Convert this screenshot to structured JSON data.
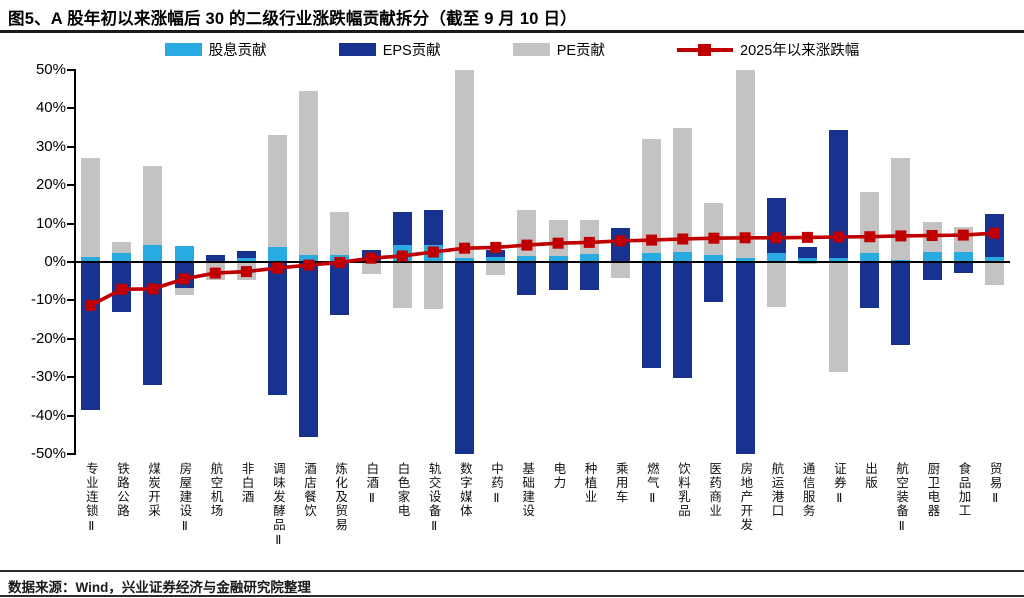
{
  "title": "图5、A 股年初以来涨幅后 30 的二级行业涨跌幅贡献拆分（截至 9 月 10 日）",
  "footer": {
    "source": "数据来源：Wind，兴业证券经济与金融研究院整理"
  },
  "legend": [
    {
      "label": "股息贡献",
      "color": "#29abe2",
      "kind": "box"
    },
    {
      "label": "EPS贡献",
      "color": "#17338f",
      "kind": "box"
    },
    {
      "label": "PE贡献",
      "color": "#c3c3c3",
      "kind": "box"
    },
    {
      "label": "2025年以来涨跌幅",
      "color": "#c00000",
      "kind": "line"
    }
  ],
  "chart_data": {
    "type": "bar",
    "stacked": true,
    "grid": false,
    "legend_position": "top",
    "ylim": [
      -50,
      50
    ],
    "ytick_step": 10,
    "ytick_suffix": "%",
    "categories": [
      "专业连锁Ⅱ",
      "铁路公路",
      "煤炭开采",
      "房屋建设Ⅱ",
      "航空机场",
      "非白酒",
      "调味发酵品Ⅱ",
      "酒店餐饮",
      "炼化及贸易",
      "白酒Ⅱ",
      "白色家电",
      "轨交设备Ⅱ",
      "数字媒体",
      "中药Ⅱ",
      "基础建设",
      "电力",
      "种植业",
      "乘用车",
      "燃气Ⅱ",
      "饮料乳品",
      "医药商业",
      "房地产开发",
      "航运港口",
      "通信服务",
      "证券Ⅱ",
      "出版",
      "航空装备Ⅱ",
      "厨卫电器",
      "食品加工",
      "贸易Ⅱ"
    ],
    "series": [
      {
        "name": "股息贡献",
        "color": "#29abe2",
        "values": [
          1.3,
          2.4,
          4.4,
          4.2,
          0.0,
          1.1,
          3.8,
          1.8,
          1.8,
          0.0,
          4.4,
          4.4,
          1.1,
          1.4,
          1.6,
          1.6,
          2.2,
          0.0,
          2.3,
          2.7,
          1.7,
          1.0,
          2.3,
          1.0,
          1.0,
          2.3,
          0.4,
          2.7,
          2.7,
          1.4
        ]
      },
      {
        "name": "EPS贡献",
        "color": "#17338f",
        "values": [
          -38.5,
          -12.9,
          -32.0,
          -6.8,
          1.8,
          1.8,
          -34.6,
          -45.5,
          -13.8,
          3.1,
          8.7,
          9.2,
          -50.0,
          1.6,
          -8.6,
          -7.3,
          -7.3,
          8.9,
          -27.5,
          -30.1,
          -10.3,
          -50.2,
          14.3,
          3.0,
          33.4,
          -12.1,
          -21.6,
          -4.7,
          -2.9,
          11.2
        ]
      },
      {
        "name": "PE贡献",
        "color": "#c3c3c3",
        "values": [
          25.7,
          2.9,
          20.6,
          -1.8,
          -4.6,
          -4.7,
          29.2,
          42.8,
          11.3,
          -3.0,
          -12.0,
          -12.2,
          52.5,
          -3.5,
          11.9,
          9.3,
          8.8,
          -4.2,
          29.7,
          32.2,
          13.6,
          55.5,
          -11.6,
          -0.6,
          -28.6,
          16.0,
          26.8,
          7.8,
          6.4,
          -6.0
        ]
      }
    ],
    "line_series": {
      "name": "2025年以来涨跌幅",
      "color": "#c00000",
      "values": [
        -11.3,
        -7.1,
        -7.0,
        -4.4,
        -2.9,
        -2.5,
        -1.6,
        -0.8,
        -0.1,
        1.0,
        1.6,
        2.6,
        3.6,
        3.8,
        4.4,
        4.9,
        5.1,
        5.5,
        5.7,
        6.0,
        6.2,
        6.3,
        6.3,
        6.4,
        6.5,
        6.6,
        6.8,
        6.9,
        7.0,
        7.5
      ]
    }
  }
}
